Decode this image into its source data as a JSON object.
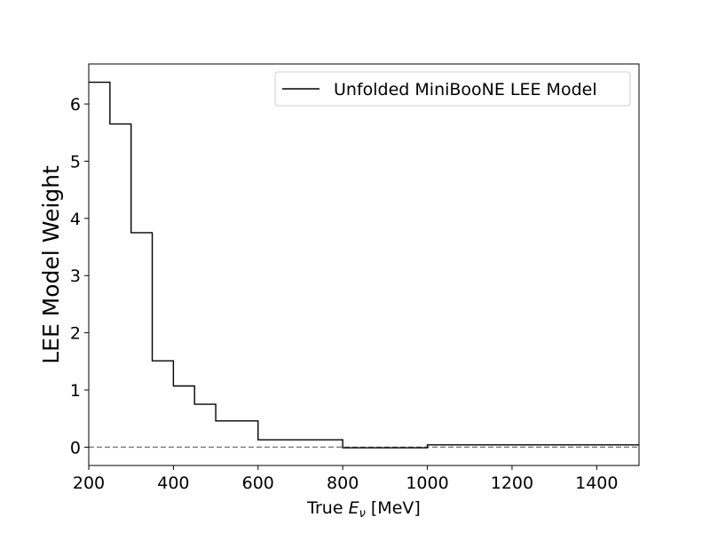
{
  "chart_data": {
    "type": "line",
    "drawstyle": "steps",
    "xlabel_prefix": "True ",
    "xlabel_symbol": "E",
    "xlabel_subscript": "ν",
    "xlabel_suffix": " [MeV]",
    "ylabel": "LEE Model Weight",
    "xlim": [
      200,
      1500
    ],
    "ylim": [
      -0.32,
      6.7
    ],
    "xticks": [
      200,
      400,
      600,
      800,
      1000,
      1200,
      1400
    ],
    "yticks": [
      0,
      1,
      2,
      3,
      4,
      5,
      6
    ],
    "grid": false,
    "legend_position": "top-right",
    "reference_line": {
      "y": 0,
      "style": "dashed",
      "color": "#808080"
    },
    "series": [
      {
        "name": "Unfolded MiniBooNE LEE Model",
        "color": "#000000",
        "bin_edges": [
          200,
          250,
          300,
          350,
          400,
          450,
          500,
          600,
          800,
          1000,
          1500
        ],
        "values": [
          6.38,
          5.65,
          3.75,
          1.51,
          1.07,
          0.75,
          0.46,
          0.13,
          -0.01,
          0.04
        ]
      }
    ]
  }
}
